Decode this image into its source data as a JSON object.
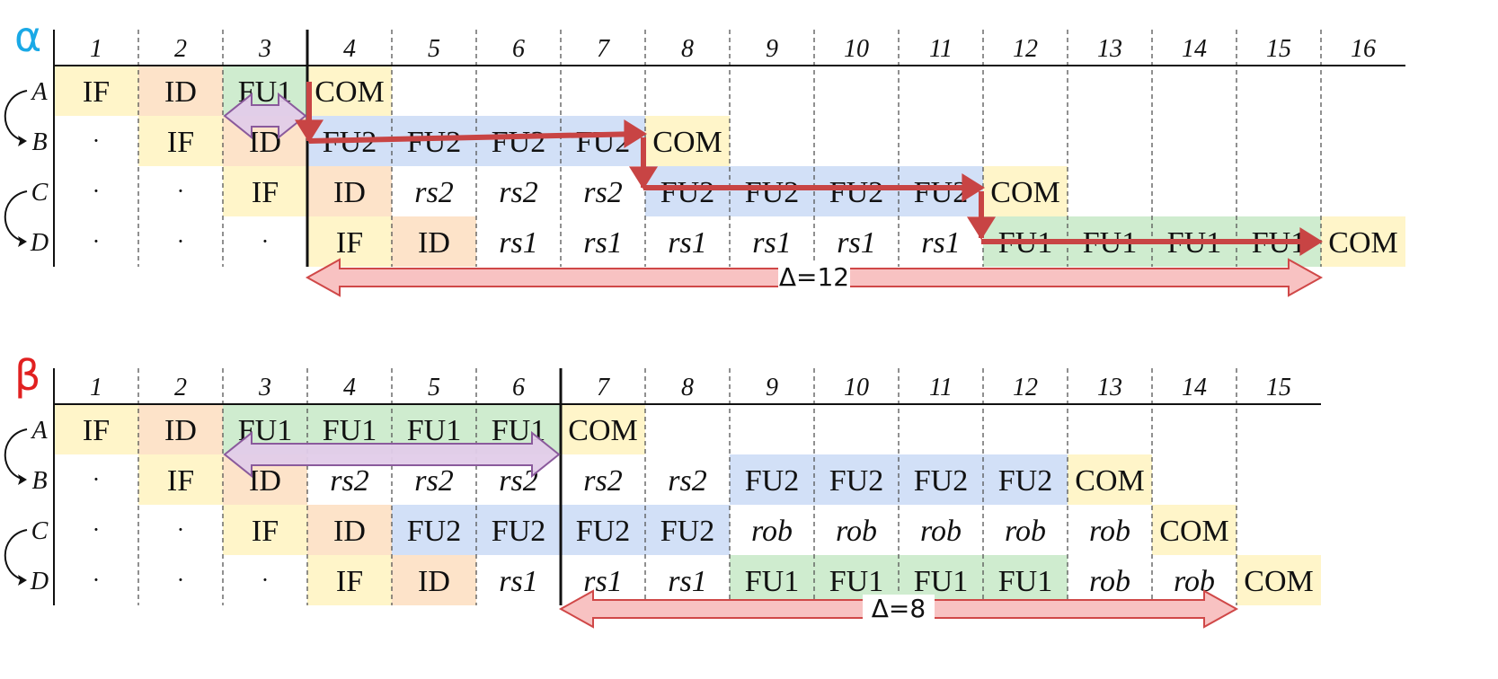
{
  "colors": {
    "IF": "#fff5c9",
    "ID": "#fde3c9",
    "FU1": "#cfeccf",
    "FU2": "#d2e0f7",
    "COM": "#fff5c9",
    "arrow_red": "#c84444",
    "arrow_pink_fill": "#f8c2c2",
    "arrow_pink_stroke": "#d04848",
    "arrow_purple_fill": "#e2cce9",
    "arrow_purple_stroke": "#8a5a9c",
    "alpha": "#1aa9e6",
    "beta": "#e12020"
  },
  "tables": [
    {
      "symbol": "α",
      "columns": [
        "1",
        "2",
        "3",
        "4",
        "5",
        "6",
        "7",
        "8",
        "9",
        "10",
        "11",
        "12",
        "13",
        "14",
        "15",
        "16"
      ],
      "rows": [
        {
          "label": "A",
          "cells": [
            "IF",
            "ID",
            "FU1",
            "COM",
            "",
            "",
            "",
            "",
            "",
            "",
            "",
            "",
            "",
            "",
            "",
            ""
          ]
        },
        {
          "label": "B",
          "cells": [
            "·",
            "IF",
            "ID",
            "FU2",
            "FU2",
            "FU2",
            "FU2",
            "COM",
            "",
            "",
            "",
            "",
            "",
            "",
            "",
            ""
          ]
        },
        {
          "label": "C",
          "cells": [
            "·",
            "·",
            "IF",
            "ID",
            "rs2",
            "rs2",
            "rs2",
            "FU2",
            "FU2",
            "FU2",
            "FU2",
            "COM",
            "",
            "",
            "",
            ""
          ]
        },
        {
          "label": "D",
          "cells": [
            "·",
            "·",
            "·",
            "IF",
            "ID",
            "rs1",
            "rs1",
            "rs1",
            "rs1",
            "rs1",
            "rs1",
            "FU1",
            "FU1",
            "FU1",
            "FU1",
            "COM"
          ]
        }
      ],
      "delta_label": "Δ=12"
    },
    {
      "symbol": "β",
      "columns": [
        "1",
        "2",
        "3",
        "4",
        "5",
        "6",
        "7",
        "8",
        "9",
        "10",
        "11",
        "12",
        "13",
        "14",
        "15"
      ],
      "rows": [
        {
          "label": "A",
          "cells": [
            "IF",
            "ID",
            "FU1",
            "FU1",
            "FU1",
            "FU1",
            "COM",
            "",
            "",
            "",
            "",
            "",
            "",
            "",
            ""
          ]
        },
        {
          "label": "B",
          "cells": [
            "·",
            "IF",
            "ID",
            "rs2",
            "rs2",
            "rs2",
            "rs2",
            "rs2",
            "FU2",
            "FU2",
            "FU2",
            "FU2",
            "COM",
            "",
            ""
          ]
        },
        {
          "label": "C",
          "cells": [
            "·",
            "·",
            "IF",
            "ID",
            "FU2",
            "FU2",
            "FU2",
            "FU2",
            "rob",
            "rob",
            "rob",
            "rob",
            "rob",
            "COM",
            ""
          ]
        },
        {
          "label": "D",
          "cells": [
            "·",
            "·",
            "·",
            "IF",
            "ID",
            "rs1",
            "rs1",
            "rs1",
            "FU1",
            "FU1",
            "FU1",
            "FU1",
            "rob",
            "rob",
            "COM"
          ]
        }
      ],
      "delta_label": "Δ=8"
    }
  ]
}
